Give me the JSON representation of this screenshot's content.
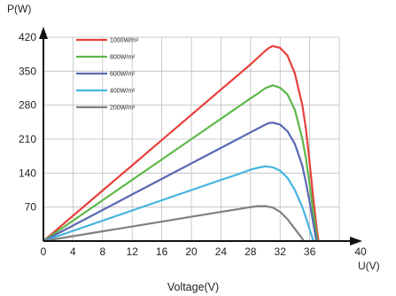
{
  "chart_data": {
    "type": "line",
    "xlabel": "Voltage(V)",
    "x_axis_unit_label": "U(V)",
    "ylabel": "P(W)",
    "xlim": [
      0,
      40
    ],
    "ylim": [
      0,
      420
    ],
    "x_ticks": [
      0,
      4,
      8,
      12,
      16,
      20,
      24,
      28,
      32,
      36,
      40
    ],
    "y_ticks": [
      70,
      140,
      210,
      280,
      350,
      420
    ],
    "grid": true,
    "legend_position": "top-left",
    "series": [
      {
        "name": "1000W/m²",
        "color": "#e8403c",
        "points": [
          [
            0,
            0
          ],
          [
            4,
            52
          ],
          [
            8,
            104
          ],
          [
            12,
            156
          ],
          [
            16,
            208
          ],
          [
            20,
            260
          ],
          [
            24,
            312
          ],
          [
            26,
            338
          ],
          [
            28,
            364
          ],
          [
            29,
            378
          ],
          [
            30,
            392
          ],
          [
            30.5,
            398
          ],
          [
            31,
            402
          ],
          [
            32,
            398
          ],
          [
            33,
            382
          ],
          [
            34,
            345
          ],
          [
            35,
            280
          ],
          [
            35.5,
            230
          ],
          [
            36,
            160
          ],
          [
            36.5,
            85
          ],
          [
            37,
            20
          ],
          [
            37.2,
            0
          ]
        ]
      },
      {
        "name": "800W/m²",
        "color": "#5cb848",
        "points": [
          [
            0,
            0
          ],
          [
            4,
            42
          ],
          [
            8,
            84
          ],
          [
            12,
            126
          ],
          [
            16,
            168
          ],
          [
            20,
            210
          ],
          [
            24,
            252
          ],
          [
            26,
            273
          ],
          [
            28,
            294
          ],
          [
            29,
            304
          ],
          [
            30,
            315
          ],
          [
            31,
            321
          ],
          [
            32,
            316
          ],
          [
            33,
            302
          ],
          [
            34,
            270
          ],
          [
            35,
            210
          ],
          [
            35.5,
            170
          ],
          [
            36,
            115
          ],
          [
            36.5,
            58
          ],
          [
            37,
            5
          ],
          [
            37.1,
            0
          ]
        ]
      },
      {
        "name": "600W/m²",
        "color": "#5a68b4",
        "points": [
          [
            0,
            0
          ],
          [
            4,
            32
          ],
          [
            8,
            64
          ],
          [
            12,
            96
          ],
          [
            16,
            128
          ],
          [
            20,
            160
          ],
          [
            24,
            192
          ],
          [
            26,
            208
          ],
          [
            28,
            224
          ],
          [
            29,
            232
          ],
          [
            30,
            240
          ],
          [
            30.5,
            243
          ],
          [
            31,
            244
          ],
          [
            32,
            240
          ],
          [
            33,
            226
          ],
          [
            34,
            200
          ],
          [
            35,
            155
          ],
          [
            35.5,
            120
          ],
          [
            36,
            80
          ],
          [
            36.5,
            35
          ],
          [
            36.9,
            0
          ]
        ]
      },
      {
        "name": "400W/m²",
        "color": "#44b4e0",
        "points": [
          [
            0,
            0
          ],
          [
            4,
            21
          ],
          [
            8,
            42
          ],
          [
            12,
            63
          ],
          [
            16,
            84
          ],
          [
            20,
            105
          ],
          [
            24,
            126
          ],
          [
            26,
            136
          ],
          [
            28,
            147
          ],
          [
            29,
            151
          ],
          [
            30,
            154
          ],
          [
            31,
            152
          ],
          [
            32,
            145
          ],
          [
            33,
            130
          ],
          [
            34,
            105
          ],
          [
            35,
            70
          ],
          [
            35.5,
            48
          ],
          [
            36,
            24
          ],
          [
            36.5,
            0
          ]
        ]
      },
      {
        "name": "200W/m²",
        "color": "#808080",
        "points": [
          [
            0,
            0
          ],
          [
            4,
            10
          ],
          [
            8,
            20
          ],
          [
            12,
            30
          ],
          [
            16,
            40
          ],
          [
            20,
            50
          ],
          [
            24,
            60
          ],
          [
            26,
            65
          ],
          [
            28,
            70
          ],
          [
            29,
            72
          ],
          [
            30,
            72
          ],
          [
            31,
            69
          ],
          [
            32,
            60
          ],
          [
            33,
            45
          ],
          [
            34,
            25
          ],
          [
            35,
            5
          ],
          [
            35.2,
            0
          ]
        ]
      }
    ]
  }
}
